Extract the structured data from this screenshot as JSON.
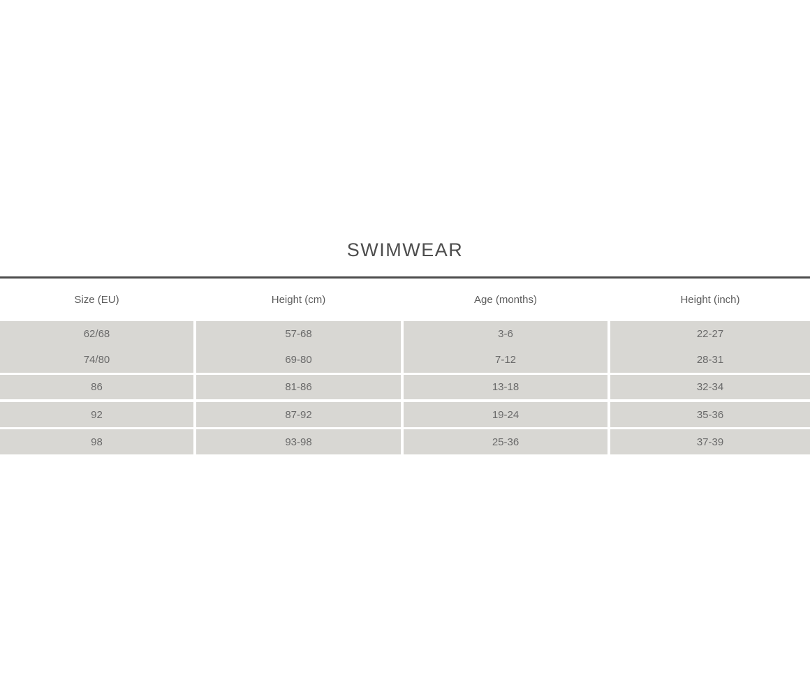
{
  "title": "SWIMWEAR",
  "table": {
    "columns": [
      "Size (EU)",
      "Height (cm)",
      "Age (months)",
      "Height (inch)"
    ],
    "rows": [
      [
        "62/68",
        "57-68",
        "3-6",
        "22-27"
      ],
      [
        "74/80",
        "69-80",
        "7-12",
        "28-31"
      ],
      [
        "86",
        "81-86",
        "13-18",
        "32-34"
      ],
      [
        "92",
        "87-92",
        "19-24",
        "35-36"
      ],
      [
        "98",
        "93-98",
        "25-36",
        "37-39"
      ]
    ]
  },
  "colors": {
    "page_background": "#ffffff",
    "row_background": "#d8d7d3",
    "header_text": "#5c5c5c",
    "cell_text": "#6a6a6a",
    "title_text": "#4d4d4d",
    "top_rule": "#4d4d4d"
  },
  "chart_data": {
    "type": "table",
    "title": "SWIMWEAR",
    "columns": [
      "Size (EU)",
      "Height (cm)",
      "Age (months)",
      "Height (inch)"
    ],
    "rows": [
      [
        "62/68",
        "57-68",
        "3-6",
        "22-27"
      ],
      [
        "74/80",
        "69-80",
        "7-12",
        "28-31"
      ],
      [
        "86",
        "81-86",
        "13-18",
        "32-34"
      ],
      [
        "92",
        "87-92",
        "19-24",
        "35-36"
      ],
      [
        "98",
        "93-98",
        "25-36",
        "37-39"
      ]
    ],
    "layout_hints": {
      "header_background": "white",
      "body_rows_background": "gray-bands",
      "first_two_rows_share_band": true,
      "grid": "white gaps between bands and columns",
      "top_rule": "dark full-width line under title"
    }
  }
}
